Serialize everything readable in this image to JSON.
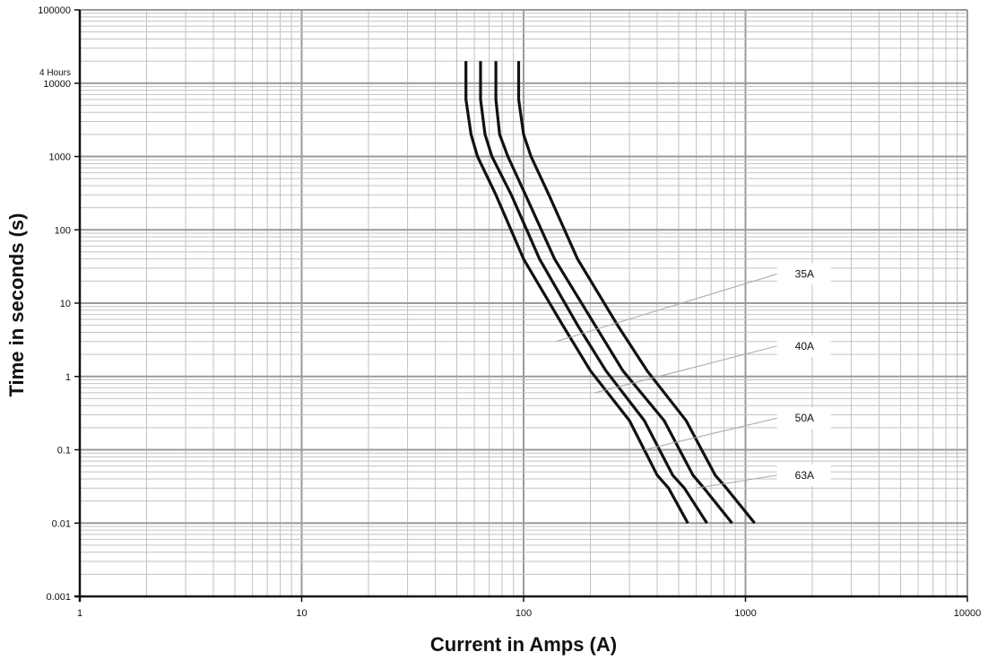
{
  "chart_data": {
    "type": "line",
    "title": "",
    "xlabel": "Current in Amps (A)",
    "ylabel": "Time in seconds (s)",
    "x_scale": "log",
    "y_scale": "log",
    "xlim": [
      1,
      10000
    ],
    "ylim": [
      0.001,
      100000
    ],
    "grid": true,
    "x_ticks": [
      {
        "value": 1,
        "label": "1"
      },
      {
        "value": 10,
        "label": "10"
      },
      {
        "value": 100,
        "label": "100"
      },
      {
        "value": 1000,
        "label": "1000"
      },
      {
        "value": 10000,
        "label": "10000"
      }
    ],
    "y_ticks": [
      {
        "value": 0.001,
        "label": "0.001"
      },
      {
        "value": 0.01,
        "label": "0.01"
      },
      {
        "value": 0.1,
        "label": "0.1"
      },
      {
        "value": 1,
        "label": "1"
      },
      {
        "value": 10,
        "label": "10"
      },
      {
        "value": 100,
        "label": "100"
      },
      {
        "value": 1000,
        "label": "1000"
      },
      {
        "value": 10000,
        "label": "10000"
      },
      {
        "value": 100000,
        "label": "100000"
      }
    ],
    "annotations": [
      {
        "value": 14400,
        "label": "4 Hours"
      }
    ],
    "line_color": "#111111",
    "grid_major_color": "#9a9a9a",
    "grid_minor_color": "#c2c2c2",
    "series": [
      {
        "name": "35A",
        "points": [
          [
            55,
            20000
          ],
          [
            55,
            6000
          ],
          [
            58,
            2000
          ],
          [
            62,
            1000
          ],
          [
            75,
            300
          ],
          [
            100,
            40
          ],
          [
            150,
            5
          ],
          [
            200,
            1.2
          ],
          [
            300,
            0.25
          ],
          [
            400,
            0.045
          ],
          [
            450,
            0.03
          ],
          [
            550,
            0.01
          ]
        ]
      },
      {
        "name": "40A",
        "points": [
          [
            64,
            20000
          ],
          [
            64,
            6000
          ],
          [
            67,
            2000
          ],
          [
            72,
            1000
          ],
          [
            88,
            300
          ],
          [
            118,
            40
          ],
          [
            175,
            5
          ],
          [
            235,
            1.2
          ],
          [
            350,
            0.25
          ],
          [
            470,
            0.045
          ],
          [
            530,
            0.03
          ],
          [
            670,
            0.01
          ]
        ]
      },
      {
        "name": "50A",
        "points": [
          [
            75,
            20000
          ],
          [
            75,
            6000
          ],
          [
            78,
            2000
          ],
          [
            85,
            1000
          ],
          [
            102,
            300
          ],
          [
            138,
            40
          ],
          [
            210,
            5
          ],
          [
            280,
            1.2
          ],
          [
            430,
            0.25
          ],
          [
            580,
            0.045
          ],
          [
            650,
            0.03
          ],
          [
            870,
            0.01
          ]
        ]
      },
      {
        "name": "63A",
        "points": [
          [
            95,
            20000
          ],
          [
            95,
            6000
          ],
          [
            100,
            2000
          ],
          [
            108,
            1000
          ],
          [
            130,
            300
          ],
          [
            175,
            40
          ],
          [
            265,
            5
          ],
          [
            360,
            1.2
          ],
          [
            540,
            0.25
          ],
          [
            730,
            0.045
          ],
          [
            820,
            0.03
          ],
          [
            1100,
            0.01
          ]
        ]
      }
    ],
    "callouts": [
      {
        "label": "35A",
        "anchor": [
          140,
          3
        ],
        "box_at": [
          1800,
          25
        ]
      },
      {
        "label": "40A",
        "anchor": [
          210,
          0.6
        ],
        "box_at": [
          1800,
          2.6
        ]
      },
      {
        "label": "50A",
        "anchor": [
          350,
          0.1
        ],
        "box_at": [
          1800,
          0.27
        ]
      },
      {
        "label": "63A",
        "anchor": [
          600,
          0.03
        ],
        "box_at": [
          1800,
          0.045
        ]
      }
    ]
  }
}
